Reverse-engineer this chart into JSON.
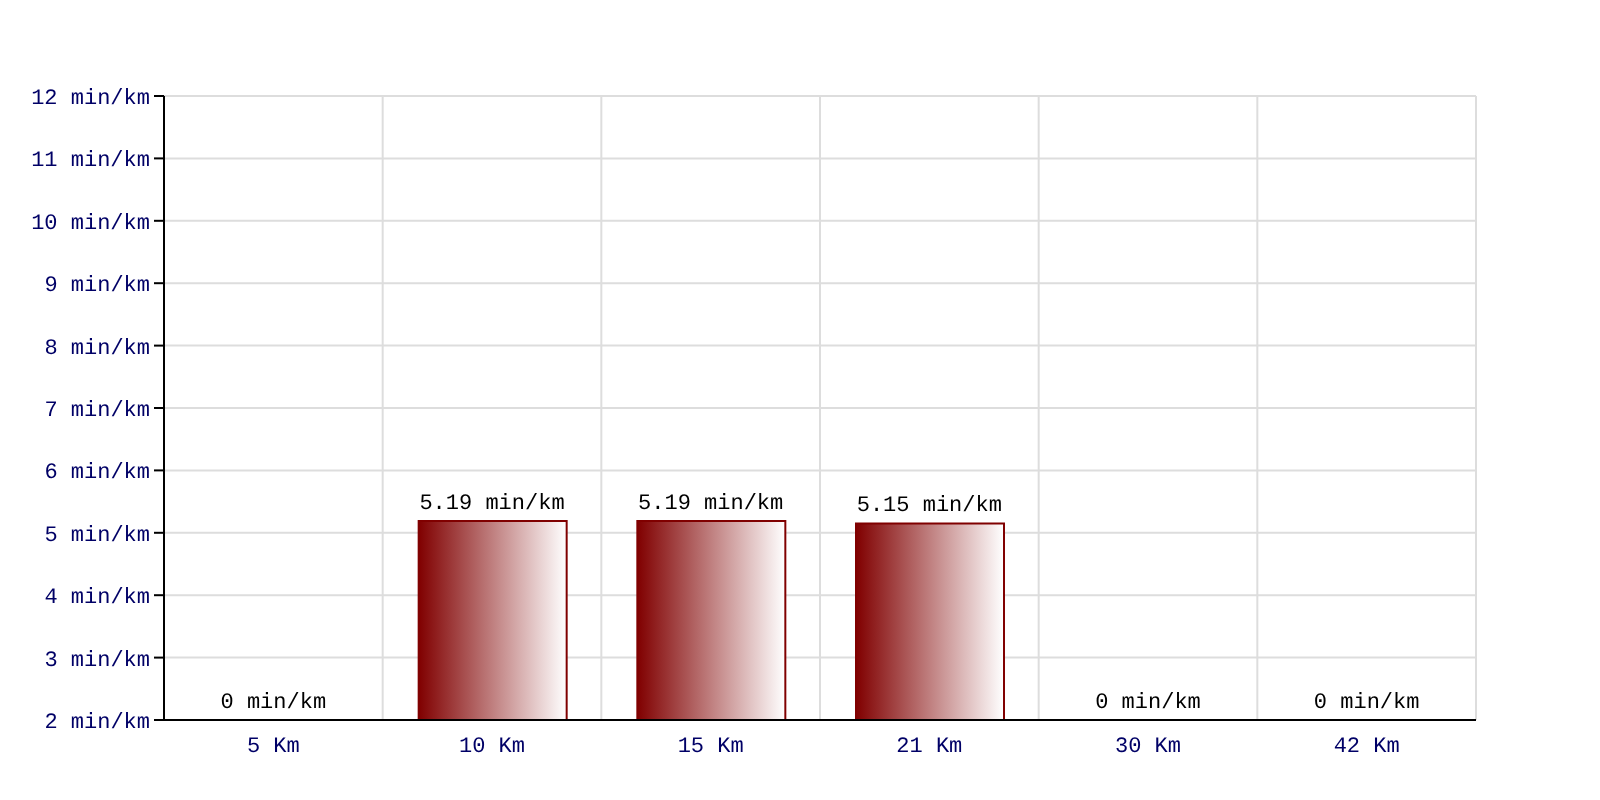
{
  "chart_data": {
    "type": "bar",
    "categories": [
      "5 Km",
      "10 Km",
      "15 Km",
      "21 Km",
      "30 Km",
      "42 Km"
    ],
    "values": [
      null,
      5.19,
      5.19,
      5.15,
      null,
      null
    ],
    "value_labels": [
      "0 min/km",
      "5.19 min/km",
      "5.19 min/km",
      "5.15 min/km",
      "0 min/km",
      "0 min/km"
    ],
    "color": "#800000",
    "ylim": [
      2,
      12
    ],
    "yticks": [
      {
        "value": 2,
        "label": "2 min/km"
      },
      {
        "value": 3,
        "label": "3 min/km"
      },
      {
        "value": 4,
        "label": "4 min/km"
      },
      {
        "value": 5,
        "label": "5 min/km"
      },
      {
        "value": 6,
        "label": "6 min/km"
      },
      {
        "value": 7,
        "label": "7 min/km"
      },
      {
        "value": 8,
        "label": "8 min/km"
      },
      {
        "value": 9,
        "label": "9 min/km"
      },
      {
        "value": 10,
        "label": "10 min/km"
      },
      {
        "value": 11,
        "label": "11 min/km"
      },
      {
        "value": 12,
        "label": "12 min/km"
      }
    ],
    "grid": true
  }
}
